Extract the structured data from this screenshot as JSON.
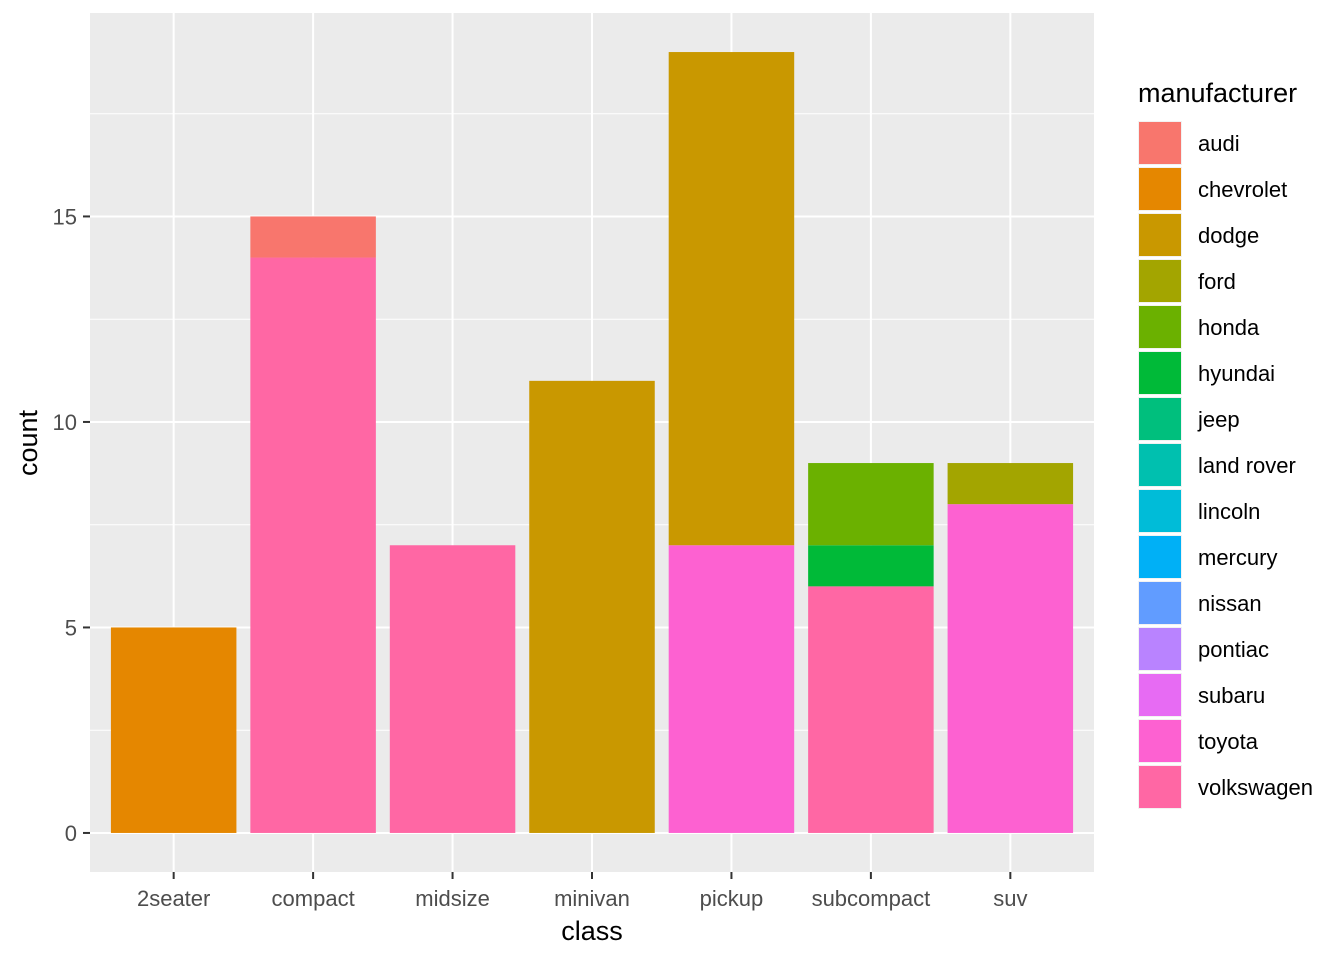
{
  "chart_data": {
    "type": "bar",
    "stacked": true,
    "xlabel": "class",
    "ylabel": "count",
    "ylim": [
      -0.95,
      19.95
    ],
    "y_ticks": [
      0,
      5,
      10,
      15
    ],
    "y_tick_labels": [
      "0",
      "5",
      "10",
      "15"
    ],
    "grid": true,
    "legend_position": "right",
    "legend_title": "manufacturer",
    "categories": [
      "2seater",
      "compact",
      "midsize",
      "minivan",
      "pickup",
      "subcompact",
      "suv"
    ],
    "series": [
      {
        "name": "audi",
        "color": "#F8766D",
        "values": [
          0,
          1,
          0,
          0,
          0,
          0,
          0
        ]
      },
      {
        "name": "chevrolet",
        "color": "#E58700",
        "values": [
          5,
          0,
          0,
          0,
          0,
          0,
          0
        ]
      },
      {
        "name": "dodge",
        "color": "#C99800",
        "values": [
          0,
          0,
          0,
          11,
          12,
          0,
          0
        ]
      },
      {
        "name": "ford",
        "color": "#A3A500",
        "values": [
          0,
          0,
          0,
          0,
          0,
          0,
          1
        ]
      },
      {
        "name": "honda",
        "color": "#6BB100",
        "values": [
          0,
          0,
          0,
          0,
          0,
          2,
          0
        ]
      },
      {
        "name": "hyundai",
        "color": "#00BA38",
        "values": [
          0,
          0,
          0,
          0,
          0,
          1,
          0
        ]
      },
      {
        "name": "jeep",
        "color": "#00BF7D",
        "values": [
          0,
          0,
          0,
          0,
          0,
          0,
          0
        ]
      },
      {
        "name": "land rover",
        "color": "#00C0AF",
        "values": [
          0,
          0,
          0,
          0,
          0,
          0,
          0
        ]
      },
      {
        "name": "lincoln",
        "color": "#00BCD8",
        "values": [
          0,
          0,
          0,
          0,
          0,
          0,
          0
        ]
      },
      {
        "name": "mercury",
        "color": "#00B0F6",
        "values": [
          0,
          0,
          0,
          0,
          0,
          0,
          0
        ]
      },
      {
        "name": "nissan",
        "color": "#619CFF",
        "values": [
          0,
          0,
          0,
          0,
          0,
          0,
          0
        ]
      },
      {
        "name": "pontiac",
        "color": "#B983FF",
        "values": [
          0,
          0,
          0,
          0,
          0,
          0,
          0
        ]
      },
      {
        "name": "subaru",
        "color": "#E76BF3",
        "values": [
          0,
          0,
          0,
          0,
          0,
          0,
          0
        ]
      },
      {
        "name": "toyota",
        "color": "#FD61D1",
        "values": [
          0,
          0,
          0,
          0,
          7,
          0,
          8
        ]
      },
      {
        "name": "volkswagen",
        "color": "#FF67A4",
        "values": [
          0,
          14,
          7,
          0,
          0,
          6,
          0
        ]
      }
    ]
  }
}
